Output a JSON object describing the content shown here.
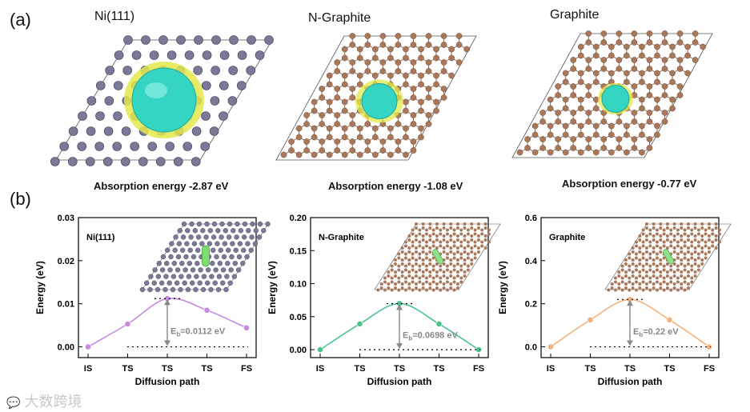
{
  "panel_a": {
    "label": "(a)",
    "structures": [
      {
        "title": "Ni(111)",
        "absorption": "Absorption energy  -2.87 eV",
        "atom_color": "#7a7a98",
        "density": "heavy"
      },
      {
        "title": "N-Graphite",
        "absorption": "Absorption energy  -1.08 eV",
        "atom_color": "#a9785a",
        "density": "medium"
      },
      {
        "title": "Graphite",
        "absorption": "Absorption energy  -0.77 eV",
        "atom_color": "#a9785a",
        "density": "light"
      }
    ]
  },
  "panel_b": {
    "label": "(b)"
  },
  "watermark": "大数跨境",
  "colors": {
    "ni_curve": "#c58be0",
    "ng_curve": "#49c28b",
    "gr_curve": "#f3b07a",
    "isosurface": "#34d6c3",
    "lobe": "#e3e84a"
  },
  "chart_data": [
    {
      "type": "line",
      "inset_label": "Ni(111)",
      "categories": [
        "IS",
        "TS",
        "TS",
        "TS",
        "FS"
      ],
      "values": [
        0.0,
        0.0053,
        0.0112,
        0.0085,
        0.0044
      ],
      "barrier_label": "E",
      "barrier_sub": "b",
      "barrier_value": "=0.0112 eV",
      "xlabel": "Diffusion path",
      "ylabel": "Energy (eV)",
      "ylim": [
        -0.0025,
        0.03
      ],
      "yticks": [
        0.0,
        0.01,
        0.02,
        0.03
      ],
      "ytick_labels": [
        "0.00",
        "0.01",
        "0.02",
        "0.03"
      ],
      "color": "#c58be0",
      "inset_kind": "ni"
    },
    {
      "type": "line",
      "inset_label": "N-Graphite",
      "categories": [
        "IS",
        "TS",
        "TS",
        "TS",
        "FS"
      ],
      "values": [
        0.0,
        0.039,
        0.0698,
        0.039,
        0.0
      ],
      "barrier_label": "E",
      "barrier_sub": "b",
      "barrier_value": "=0.0698 eV",
      "xlabel": "Diffusion path",
      "ylabel": "Energy (eV)",
      "ylim": [
        -0.012,
        0.2
      ],
      "yticks": [
        0.0,
        0.05,
        0.1,
        0.15,
        0.2
      ],
      "ytick_labels": [
        "0.00",
        "0.05",
        "0.10",
        "0.15",
        "0.20"
      ],
      "color": "#49c28b",
      "inset_kind": "c"
    },
    {
      "type": "line",
      "inset_label": "Graphite",
      "categories": [
        "IS",
        "TS",
        "TS",
        "TS",
        "FS"
      ],
      "values": [
        0.0,
        0.125,
        0.22,
        0.125,
        0.0
      ],
      "barrier_label": "E",
      "barrier_sub": "b",
      "barrier_value": "=0.22 eV",
      "xlabel": "Diffusion path",
      "ylabel": "Energy (eV)",
      "ylim": [
        -0.05,
        0.6
      ],
      "yticks": [
        0.0,
        0.2,
        0.4,
        0.6
      ],
      "ytick_labels": [
        "0.0",
        "0.2",
        "0.4",
        "0.6"
      ],
      "color": "#f3b07a",
      "inset_kind": "c"
    }
  ]
}
